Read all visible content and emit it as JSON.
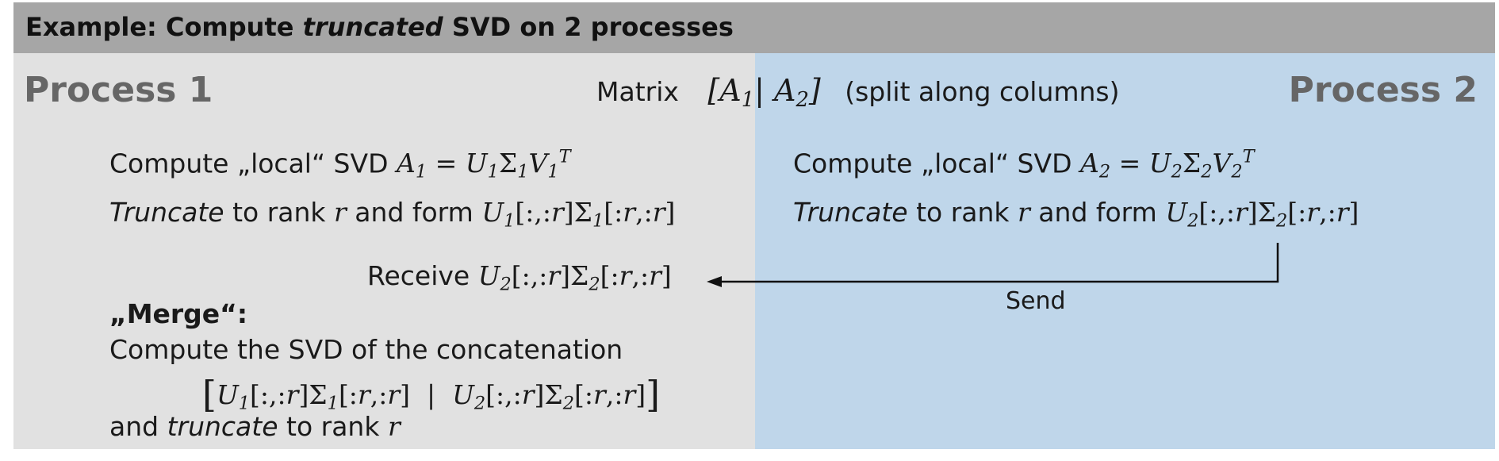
{
  "header": {
    "title_pre": "Example: Compute ",
    "title_em": "truncated",
    "title_post": " SVD on 2 processes"
  },
  "process1": {
    "label": "Process 1"
  },
  "process2": {
    "label": "Process 2"
  },
  "matrix": {
    "label": "Matrix",
    "note": "(split along columns)"
  },
  "left": {
    "compute_text": "Compute „local“ SVD ",
    "truncate_word": "Truncate",
    "truncate_text": " to rank ",
    "truncate_text2": " and form ",
    "receive_text": "Receive ",
    "merge_title": "„Merge“:",
    "merge_line1": "Compute the SVD of the concatenation",
    "merge_line3_pre": "and ",
    "merge_line3_em": "truncate",
    "merge_line3_post": " to rank "
  },
  "right": {
    "compute_text": "Compute „local“ SVD ",
    "truncate_word": "Truncate",
    "truncate_text": " to rank ",
    "truncate_text2": " and form "
  },
  "arrow": {
    "label": "Send"
  },
  "colors": {
    "header": "#a6a6a6",
    "process1_bg": "#e1e1e1",
    "process2_bg": "#bfd6ea",
    "process_label": "#666666"
  }
}
